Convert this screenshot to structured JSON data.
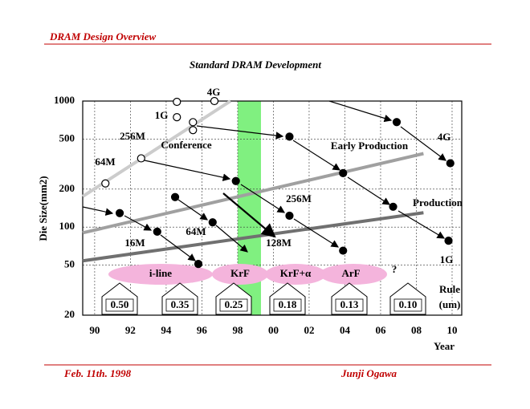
{
  "header": "DRAM Design Overview",
  "footer": {
    "date": "Feb. 11th. 1998",
    "author": "Junji Ogawa"
  },
  "chart_data": {
    "type": "scatter",
    "title": "Standard DRAM Development",
    "y_label": "Die Size(mm2)",
    "x_label": "Year",
    "log_y": true,
    "grid": true,
    "xlim": [
      1989.33,
      2010.54
    ],
    "ylim": [
      20,
      1000
    ],
    "xticks": [
      {
        "value": 1990,
        "label": "90"
      },
      {
        "value": 1992,
        "label": "92"
      },
      {
        "value": 1994,
        "label": "94"
      },
      {
        "value": 1996,
        "label": "96"
      },
      {
        "value": 1998,
        "label": "98"
      },
      {
        "value": 2000,
        "label": "00"
      },
      {
        "value": 2002,
        "label": "02"
      },
      {
        "value": 2004,
        "label": "04"
      },
      {
        "value": 2006,
        "label": "06"
      },
      {
        "value": 2008,
        "label": "08"
      },
      {
        "value": 2010,
        "label": "10"
      }
    ],
    "yticks": [
      20,
      50,
      100,
      200,
      500,
      1000
    ],
    "series": [
      {
        "marker": "open",
        "color": "#000000",
        "x": [
          1990.6,
          1992.6,
          1994.6,
          1994.6,
          1995.5,
          1995.5,
          1996.7
        ],
        "values": [
          222,
          351,
          985,
          745,
          680,
          588,
          1000
        ]
      },
      {
        "marker": "filled",
        "color": "#000000",
        "x": [
          1991.4,
          1993.5,
          1995.8,
          1994.5,
          1996.6,
          1997.9,
          2000.9,
          2003.9,
          2000.9,
          2003.9,
          2006.7,
          2009.8,
          2006.9,
          2009.9
        ],
        "values": [
          129,
          92,
          51,
          173,
          109,
          232,
          123,
          65,
          522,
          268,
          145,
          78,
          681,
          321
        ]
      }
    ],
    "lines": [
      {
        "name": "Conference",
        "color": "#cccccc",
        "x": [
          1989.33,
          1997.6
        ],
        "values": [
          175,
          1000
        ]
      },
      {
        "name": "Early Production",
        "color": "#a0a0a0",
        "x": [
          1989.33,
          2008.4
        ],
        "values": [
          90,
          383
        ]
      },
      {
        "name": "Production",
        "color": "#707070",
        "x": [
          1989.33,
          2008.4
        ],
        "values": [
          54,
          130
        ]
      }
    ],
    "annotations": [
      "4G",
      "1G",
      "256M",
      "64M",
      "4G",
      "256M",
      "64M",
      "16M",
      "128M",
      "1G",
      "?",
      "Rule",
      "(um)"
    ],
    "lithography": [
      "i-line",
      "KrF",
      "KrF+α",
      "ArF"
    ],
    "rules": [
      "0.50",
      "0.35",
      "0.25",
      "0.18",
      "0.13",
      "0.10"
    ]
  }
}
